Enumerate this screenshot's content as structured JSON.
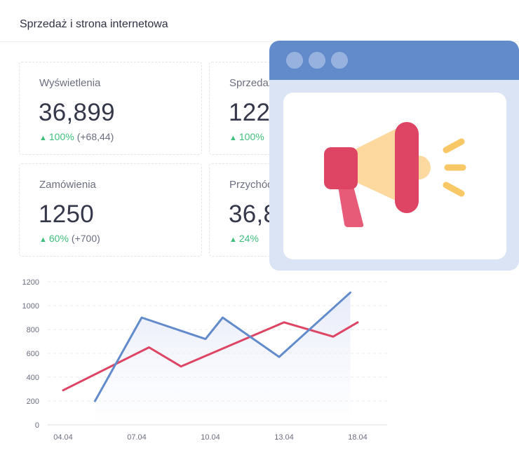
{
  "header": {
    "title": "Sprzedaż i strona internetowa"
  },
  "cards": [
    {
      "label": "Wyświetlenia",
      "value": "36,899",
      "pct": "100%",
      "abs": "(+68,44)"
    },
    {
      "label": "Sprzedaż",
      "value": "122",
      "pct": "100%",
      "abs": ""
    },
    {
      "label": "Zamówienia",
      "value": "1250",
      "pct": "60%",
      "abs": "(+700)"
    },
    {
      "label": "Przychód",
      "value": "36,8",
      "pct": "24%",
      "abs": ""
    }
  ],
  "popup": {
    "icon": "megaphone-icon",
    "colors": {
      "bar": "#618bcb",
      "frame": "#dbe4f4"
    }
  },
  "chart_data": {
    "type": "line",
    "x_ticks": [
      "04.04",
      "07.04",
      "10.04",
      "13.04",
      "18.04"
    ],
    "y_ticks": [
      "0",
      "200",
      "400",
      "600",
      "800",
      "1000",
      "1200"
    ],
    "ylim": [
      0,
      1200
    ],
    "xlim": [
      0,
      12
    ],
    "grid": true,
    "series": [
      {
        "color": "#de4564",
        "points": [
          [
            0,
            290
          ],
          [
            3.5,
            650
          ],
          [
            4.8,
            490
          ],
          [
            9,
            860
          ],
          [
            11,
            740
          ],
          [
            12,
            860
          ]
        ]
      },
      {
        "color": "#618bcb",
        "points": [
          [
            1.3,
            200
          ],
          [
            3.2,
            900
          ],
          [
            5.8,
            720
          ],
          [
            6.5,
            900
          ],
          [
            8.8,
            570
          ],
          [
            11.7,
            1110
          ]
        ]
      }
    ]
  }
}
